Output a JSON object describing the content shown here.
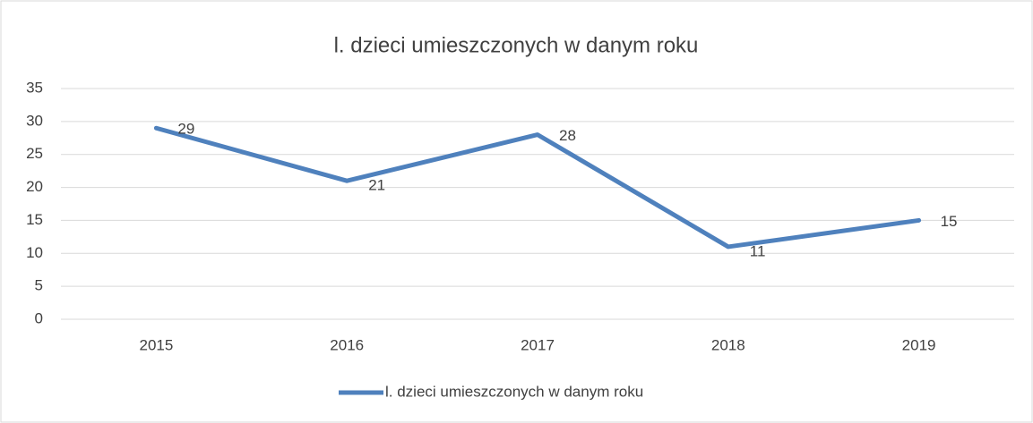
{
  "chart_data": {
    "type": "line",
    "title": "l. dzieci umieszczonych w danym roku",
    "categories": [
      "2015",
      "2016",
      "2017",
      "2018",
      "2019"
    ],
    "series": [
      {
        "name": "l. dzieci umieszczonych w danym roku",
        "color": "#4f81bd",
        "values": [
          29,
          21,
          28,
          11,
          15
        ]
      }
    ],
    "ylim": [
      0,
      35
    ],
    "yticks": [
      0,
      5,
      10,
      15,
      20,
      25,
      30,
      35
    ],
    "grid": true,
    "legend": "bottom"
  }
}
